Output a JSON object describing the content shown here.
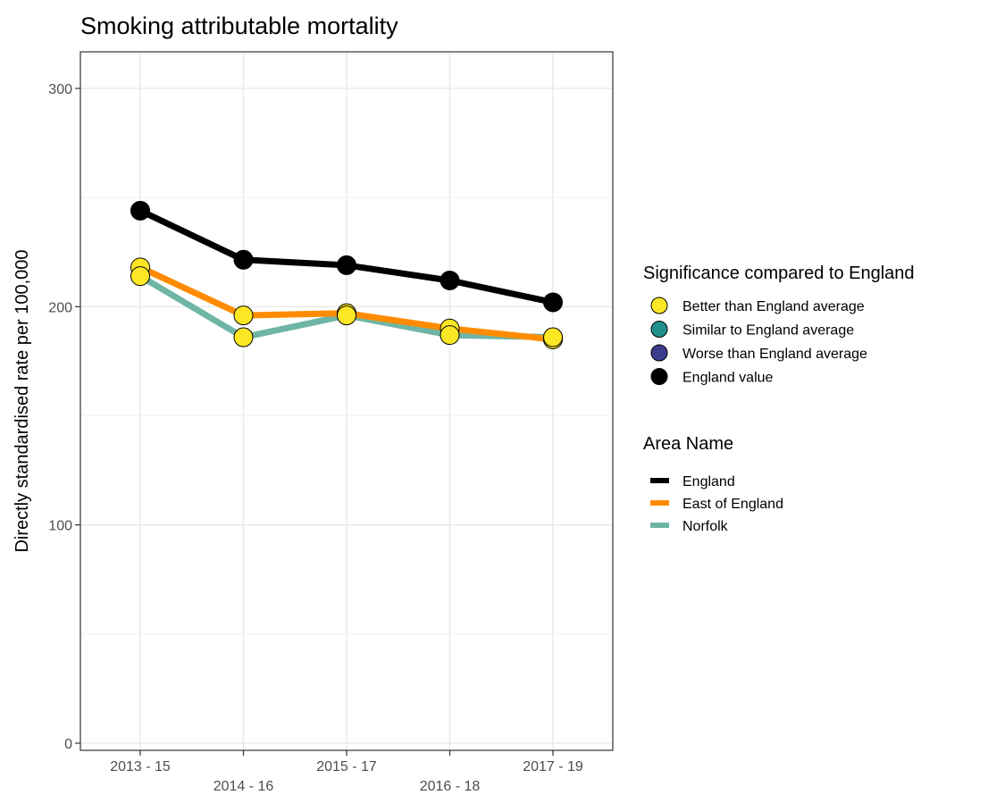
{
  "chart_data": {
    "type": "line",
    "title": "Smoking attributable mortality",
    "xlabel": "",
    "ylabel": "Directly standardised rate per 100,000",
    "categories": [
      "2013 - 15",
      "2014 - 16",
      "2015 - 17",
      "2016 - 18",
      "2017 - 19"
    ],
    "y_ticks": [
      "0",
      "100",
      "200",
      "300"
    ],
    "ylim": [
      0,
      300
    ],
    "grid": true,
    "series": [
      {
        "name": "England",
        "color": "#000000",
        "values": [
          244,
          221.5,
          219,
          212,
          202
        ],
        "point_status": "England value"
      },
      {
        "name": "East of England",
        "color": "#ff8c00",
        "values": [
          218,
          196,
          197,
          190,
          185
        ],
        "point_status": "Better than England average"
      },
      {
        "name": "Norfolk",
        "color": "#6fb5a5",
        "values": [
          214,
          186,
          196,
          187,
          186
        ],
        "point_status": "Better than England average"
      }
    ],
    "legend_position": "right",
    "legends": [
      {
        "title": "Significance compared to England",
        "items": [
          {
            "label": "Better than England average",
            "color": "#fde725"
          },
          {
            "label": "Similar to England average",
            "color": "#21908c"
          },
          {
            "label": "Worse than England average",
            "color": "#3b3c8c"
          },
          {
            "label": "England value",
            "color": "#000000"
          }
        ]
      },
      {
        "title": "Area Name",
        "items": [
          {
            "label": "England",
            "color": "#000000"
          },
          {
            "label": "East of England",
            "color": "#ff8c00"
          },
          {
            "label": "Norfolk",
            "color": "#6fb5a5"
          }
        ]
      }
    ]
  }
}
